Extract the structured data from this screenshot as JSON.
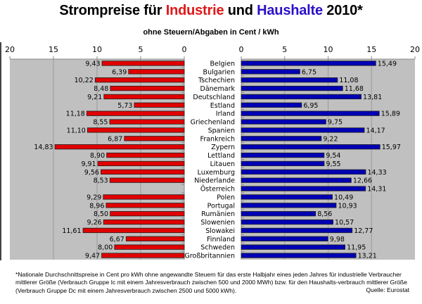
{
  "title": {
    "prefix": "Strompreise für ",
    "industry": "Industrie",
    "middle": " und ",
    "households": "Haushalte",
    "suffix": " 2010*"
  },
  "subtitle": "ohne Steuern/Abgaben in Cent / kWh",
  "colors": {
    "industry": "#e00000",
    "households": "#0000b4",
    "plot_bg": "#c0c0c0",
    "grid": "#9a9a9a"
  },
  "chart_data": {
    "type": "bar",
    "orientation": "horizontal-butterfly",
    "title": "Strompreise für Industrie und Haushalte 2010*",
    "subtitle": "ohne Steuern/Abgaben in Cent / kWh",
    "xlabel": "",
    "ylabel": "",
    "xlim": [
      0,
      20
    ],
    "xticks": [
      0,
      5,
      10,
      15,
      20
    ],
    "grid": true,
    "categories": [
      "Belgien",
      "Bulgarien",
      "Tschechien",
      "Dänemark",
      "Deutschland",
      "Estland",
      "Irland",
      "Griechenland",
      "Spanien",
      "Frankreich",
      "Zypern",
      "Lettland",
      "Litauen",
      "Luxemburg",
      "Niederlande",
      "Österreich",
      "Polen",
      "Portugal",
      "Rumänien",
      "Slowenien",
      "Slowakei",
      "Finnland",
      "Schweden",
      "Großbritannien"
    ],
    "series": [
      {
        "name": "Industrie",
        "side": "left",
        "values": [
          9.43,
          6.39,
          10.22,
          8.48,
          9.21,
          5.73,
          11.18,
          8.55,
          11.1,
          6.87,
          14.83,
          8.9,
          9.91,
          9.56,
          8.53,
          null,
          9.29,
          8.96,
          8.5,
          9.26,
          11.61,
          6.67,
          8.0,
          9.47
        ],
        "labels": [
          "9,43",
          "6,39",
          "10,22",
          "8,48",
          "9,21",
          "5,73",
          "11,18",
          "8,55",
          "11,10",
          "6,87",
          "14,83",
          "8,90",
          "9,91",
          "9,56",
          "8,53",
          "",
          "9,29",
          "8,96",
          "8,50",
          "9,26",
          "11,61",
          "6,67",
          "8,00",
          "9,47"
        ]
      },
      {
        "name": "Haushalte",
        "side": "right",
        "values": [
          15.49,
          6.75,
          11.08,
          11.68,
          13.81,
          6.95,
          15.89,
          9.75,
          14.17,
          9.22,
          15.97,
          9.54,
          9.55,
          14.33,
          12.66,
          14.31,
          10.49,
          10.93,
          8.56,
          10.57,
          12.77,
          9.98,
          11.95,
          13.21
        ],
        "labels": [
          "15,49",
          "6,75",
          "11,08",
          "11,68",
          "13,81",
          "6,95",
          "15,89",
          "9,75",
          "14,17",
          "9,22",
          "15,97",
          "9,54",
          "9,55",
          "14,33",
          "12,66",
          "14,31",
          "10,49",
          "10,93",
          "8,56",
          "10,57",
          "12,77",
          "9,98",
          "11,95",
          "13,21"
        ]
      }
    ]
  },
  "footnote": "*Nationale Durchschnittspreise in Cent pro kWh ohne angewandte Steuern für das erste Halbjahr eines jeden Jahres für industrielle Verbraucher mittlerer Größe (Verbrauch Gruppe Ic mit einem Jahresverbrauch zwischen 500 und 2000 MWh) bzw. für den Haushalts-verbrauch mittlerer Größe (Verbrauch Gruppe Dc mit einem Jahresverbrauch zwischen 2500 und 5000 kWh).",
  "source": "Quelle: Eurostat"
}
